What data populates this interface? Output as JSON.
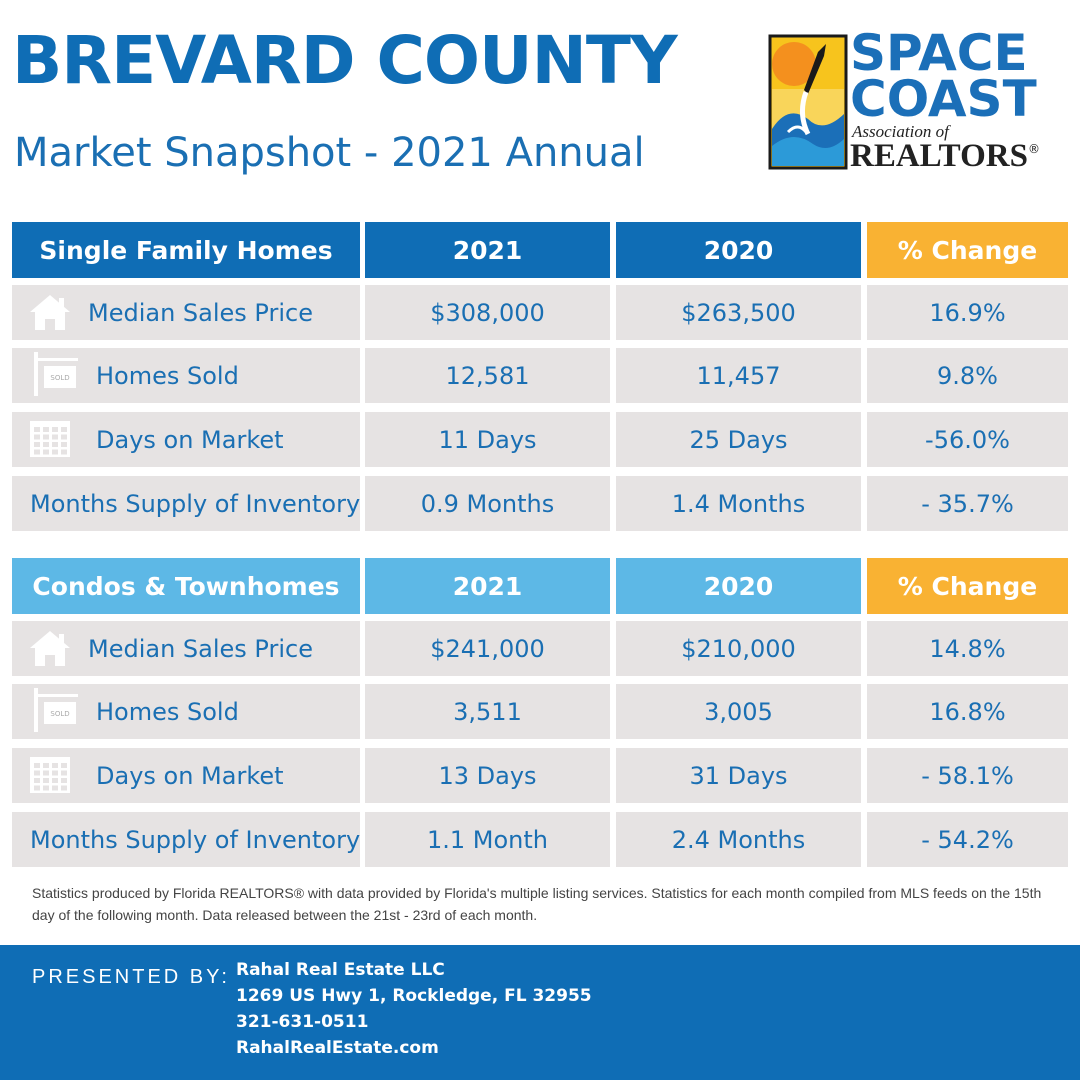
{
  "header": {
    "title": "BREVARD COUNTY",
    "subtitle": "Market Snapshot - 2021 Annual"
  },
  "logo": {
    "line1": "SPACE",
    "line2": "COAST",
    "line3": "Association of",
    "line4": "REALTORS",
    "mark": "®"
  },
  "sold_sign": "SOLD",
  "tables": [
    {
      "header": [
        "Single Family Homes",
        "2021",
        "2020",
        "% Change"
      ],
      "rows": [
        [
          "Median Sales Price",
          "$308,000",
          "$263,500",
          "16.9%"
        ],
        [
          "Homes Sold",
          "12,581",
          "11,457",
          "9.8%"
        ],
        [
          "Days on Market",
          "11 Days",
          "25 Days",
          "-56.0%"
        ],
        [
          "Months Supply of Inventory",
          "0.9 Months",
          "1.4 Months",
          "- 35.7%"
        ]
      ]
    },
    {
      "header": [
        "Condos & Townhomes",
        "2021",
        "2020",
        "% Change"
      ],
      "rows": [
        [
          "Median Sales Price",
          "$241,000",
          "$210,000",
          "14.8%"
        ],
        [
          "Homes Sold",
          "3,511",
          "3,005",
          "16.8%"
        ],
        [
          "Days on Market",
          "13 Days",
          "31 Days",
          "- 58.1%"
        ],
        [
          "Months Supply of Inventory",
          "1.1 Month",
          "2.4 Months",
          "- 54.2%"
        ]
      ]
    }
  ],
  "footnote": "Statistics produced by Florida REALTORS® with data provided by Florida's multiple listing services. Statistics for each month compiled from MLS feeds on the 15th day of the following month. Data released between the 21st - 23rd of each month.",
  "footer": {
    "presented_by": "PRESENTED BY:",
    "lines": [
      "Rahal Real Estate LLC",
      "1269 US Hwy 1, Rockledge, FL 32955",
      "321-631-0511",
      "RahalRealEstate.com"
    ]
  }
}
